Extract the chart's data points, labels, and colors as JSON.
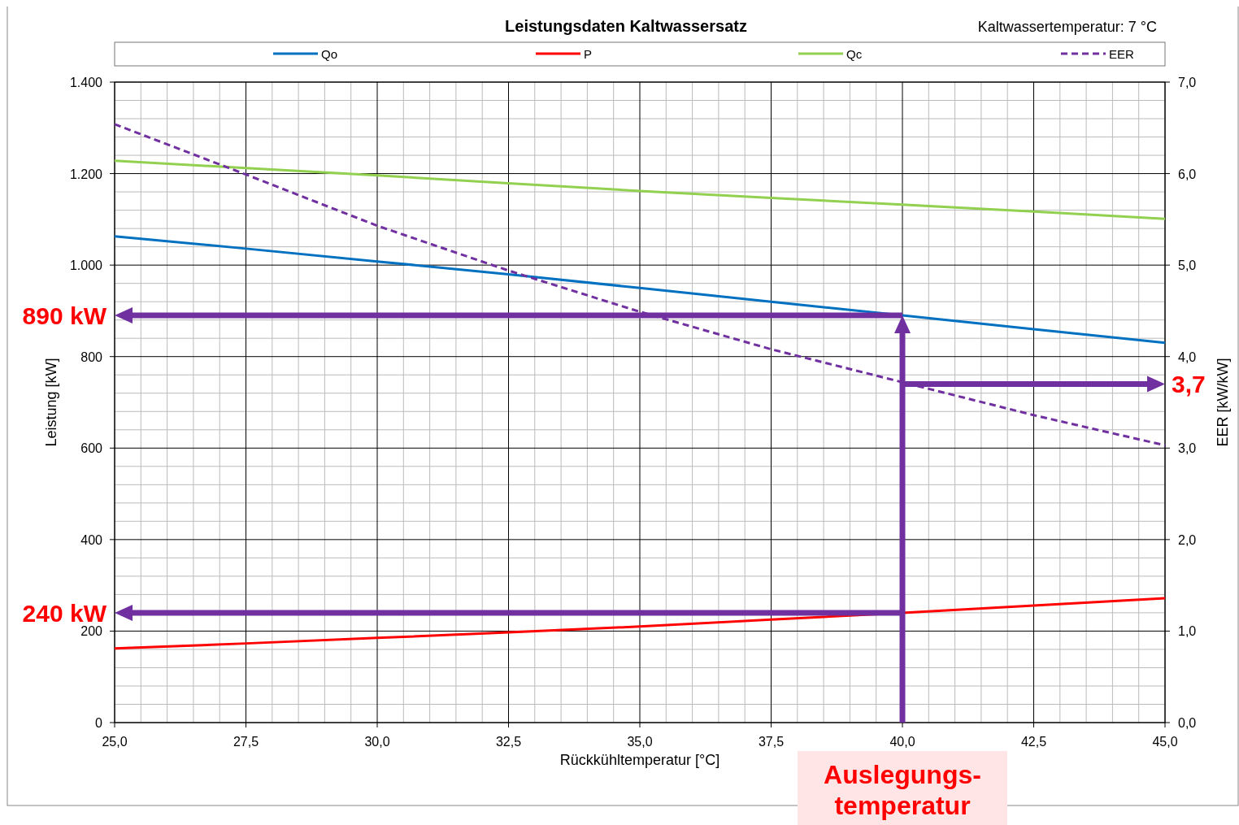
{
  "chart_data": {
    "type": "line",
    "title": "Leistungsdaten Kaltwassersatz",
    "xlabel": "Rückkühltemperatur [°C]",
    "ylabel": "Leistung [kW]",
    "y2label": "EER [kW/kW]",
    "x": [
      25,
      27.5,
      30,
      32.5,
      35,
      37.5,
      40,
      42.5,
      45
    ],
    "series": [
      {
        "name": "Qo",
        "color": "#0070c0",
        "values": [
          1063,
          1036,
          1008,
          980,
          950,
          920,
          890,
          860,
          830
        ]
      },
      {
        "name": "P",
        "color": "#ff0000",
        "values": [
          162,
          173,
          185,
          197,
          210,
          225,
          240,
          256,
          272
        ]
      },
      {
        "name": "Qc",
        "color": "#92d050",
        "values": [
          1228,
          1212,
          1196,
          1179,
          1162,
          1147,
          1132,
          1117,
          1101
        ]
      },
      {
        "name": "EER",
        "color": "#7030a0",
        "type": "line",
        "axis": "y2",
        "line_style": "dashed",
        "values": [
          6.54,
          5.99,
          5.43,
          4.94,
          4.49,
          4.08,
          3.72,
          3.36,
          3.03
        ]
      }
    ],
    "xlim": [
      25,
      45
    ],
    "xticks": [
      {
        "value": 25,
        "label": "25,0"
      },
      {
        "value": 27.5,
        "label": "27,5"
      },
      {
        "value": 30,
        "label": "30,0"
      },
      {
        "value": 32.5,
        "label": "32,5"
      },
      {
        "value": 35,
        "label": "35,0"
      },
      {
        "value": 37.5,
        "label": "37,5"
      },
      {
        "value": 40,
        "label": "40,0"
      },
      {
        "value": 42.5,
        "label": "42,5"
      },
      {
        "value": 45,
        "label": "45,0"
      }
    ],
    "ylim": [
      0,
      1400
    ],
    "yticks": [
      0,
      200,
      400,
      600,
      800,
      {
        "value": 1000,
        "label": "1.000"
      },
      {
        "value": 1200,
        "label": "1.200"
      },
      {
        "value": 1400,
        "label": "1.400"
      }
    ],
    "y2lim": [
      0,
      7
    ],
    "y2ticks": [
      {
        "value": 0,
        "label": "0,0"
      },
      {
        "value": 1,
        "label": "1,0"
      },
      {
        "value": 2,
        "label": "2,0"
      },
      {
        "value": 3,
        "label": "3,0"
      },
      {
        "value": 4,
        "label": "4,0"
      },
      {
        "value": 5,
        "label": "5,0"
      },
      {
        "value": 6,
        "label": "6,0"
      },
      {
        "value": 7,
        "label": "7,0"
      }
    ],
    "grid": true,
    "legend": "top",
    "ref_lines": [
      {
        "axis": "x",
        "value": 40,
        "label": "Auslegungs-temperatur",
        "color": "#7030a0"
      },
      {
        "axis": "y",
        "value": 890,
        "label": "890 kW",
        "color": "#7030a0"
      },
      {
        "axis": "y",
        "value": 240,
        "label": "240 kW",
        "color": "#7030a0"
      },
      {
        "axis": "y2",
        "value": 3.7,
        "label": "3,7",
        "color": "#7030a0"
      }
    ],
    "annotations": [
      "Kaltwassertemperatur: 7 °C"
    ]
  }
}
